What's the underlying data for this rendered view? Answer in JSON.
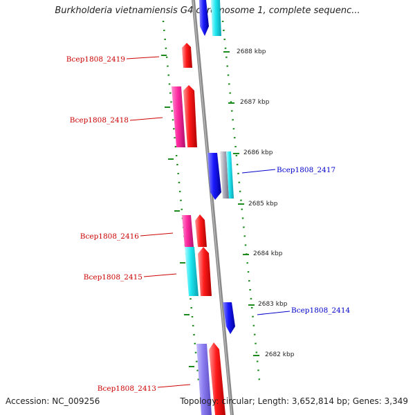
{
  "title": "Burkholderia vietnamiensis G4 chromosome 1, complete sequenc...",
  "footer": {
    "accession": "Accession: NC_009256",
    "summary": "Topology: circular; Length: 3,652,814 bp; Genes: 3,349"
  },
  "colors": {
    "backbone": "#8a8a8a",
    "tick_mark": "#1a8a1a",
    "label_forward": "#cc0000",
    "label_reverse": "#0000cc",
    "gene_red": "#ff1a1a",
    "gene_pink": "#ff2aa0",
    "gene_cyan": "#1ee6f0",
    "gene_blue": "#1a1aff",
    "gene_lavender": "#8a7cf0"
  },
  "ticks": [
    "2688 kbp",
    "2687 kbp",
    "2686 kbp",
    "2685 kbp",
    "2684 kbp",
    "2683 kbp",
    "2682 kbp"
  ],
  "gene_labels": [
    {
      "text": "Bcep1808_2419",
      "strand": "forward"
    },
    {
      "text": "Bcep1808_2418",
      "strand": "forward"
    },
    {
      "text": "Bcep1808_2417",
      "strand": "reverse"
    },
    {
      "text": "Bcep1808_2416",
      "strand": "forward"
    },
    {
      "text": "Bcep1808_2415",
      "strand": "forward"
    },
    {
      "text": "Bcep1808_2414",
      "strand": "reverse"
    },
    {
      "text": "Bcep1808_2413",
      "strand": "forward"
    }
  ]
}
